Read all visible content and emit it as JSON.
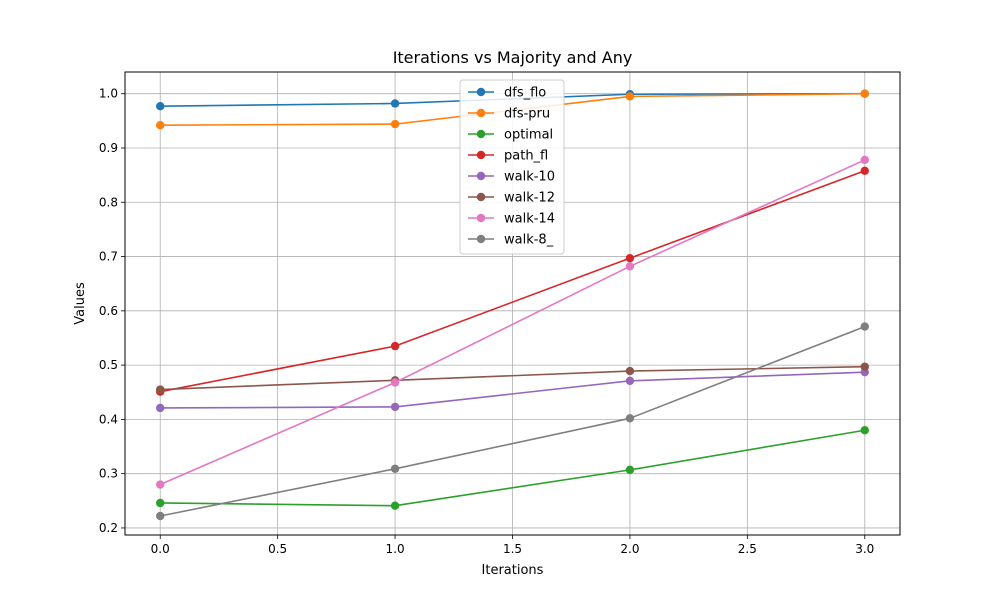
{
  "chart_data": {
    "type": "line",
    "title": "Iterations vs Majority and Any",
    "xlabel": "Iterations",
    "ylabel": "Values",
    "x": [
      0.0,
      1.0,
      2.0,
      3.0
    ],
    "xlim": [
      -0.15,
      3.15
    ],
    "ylim": [
      0.187,
      1.04
    ],
    "xticks": [
      "0.0",
      "0.5",
      "1.0",
      "1.5",
      "2.0",
      "2.5",
      "3.0"
    ],
    "yticks": [
      "0.2",
      "0.3",
      "0.4",
      "0.5",
      "0.6",
      "0.7",
      "0.8",
      "0.9",
      "1.0"
    ],
    "grid": true,
    "legend_position": "top-center",
    "series": [
      {
        "name": "dfs_flo",
        "color": "#1f77b4",
        "values": [
          0.977,
          0.982,
          0.999,
          1.0
        ]
      },
      {
        "name": "dfs-pru",
        "color": "#ff7f0e",
        "values": [
          0.942,
          0.944,
          0.995,
          1.0
        ]
      },
      {
        "name": "optimal",
        "color": "#2ca02c",
        "values": [
          0.246,
          0.241,
          0.307,
          0.38
        ]
      },
      {
        "name": "path_fl",
        "color": "#d62728",
        "values": [
          0.451,
          0.535,
          0.697,
          0.858
        ]
      },
      {
        "name": "walk-10",
        "color": "#9467bd",
        "values": [
          0.421,
          0.423,
          0.471,
          0.487
        ]
      },
      {
        "name": "walk-12",
        "color": "#8c564b",
        "values": [
          0.455,
          0.472,
          0.489,
          0.497
        ]
      },
      {
        "name": "walk-14",
        "color": "#e377c2",
        "values": [
          0.28,
          0.468,
          0.682,
          0.878
        ]
      },
      {
        "name": "walk-8_",
        "color": "#7f7f7f",
        "values": [
          0.222,
          0.309,
          0.402,
          0.571
        ]
      }
    ]
  }
}
